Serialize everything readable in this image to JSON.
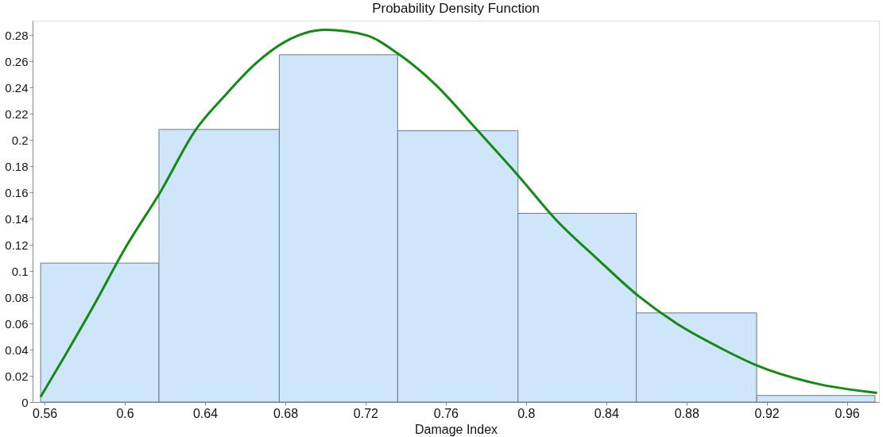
{
  "chart_data": {
    "type": "histogram",
    "title": "Probability Density Function",
    "xlabel": "Damage Index",
    "bins": [
      0.558,
      0.617,
      0.677,
      0.736,
      0.796,
      0.855,
      0.915,
      0.974
    ],
    "values": [
      0.106,
      0.208,
      0.265,
      0.207,
      0.144,
      0.068,
      0.005
    ],
    "color": "#cfe5fa",
    "series": [
      {
        "type": "line",
        "color": "#138a13",
        "x": [
          0.558,
          0.57,
          0.585,
          0.6,
          0.618,
          0.635,
          0.65,
          0.665,
          0.68,
          0.7,
          0.72,
          0.736,
          0.755,
          0.776,
          0.796,
          0.815,
          0.835,
          0.856,
          0.875,
          0.896,
          0.915,
          0.945,
          0.975
        ],
        "values": [
          0.004,
          0.035,
          0.075,
          0.117,
          0.161,
          0.207,
          0.234,
          0.258,
          0.275,
          0.284,
          0.28,
          0.266,
          0.242,
          0.207,
          0.173,
          0.139,
          0.11,
          0.081,
          0.06,
          0.042,
          0.028,
          0.014,
          0.007
        ]
      }
    ],
    "xlim": [
      0.554,
      0.976
    ],
    "ylim": [
      0,
      0.291
    ],
    "xticks": [
      0.56,
      0.6,
      0.64,
      0.68,
      0.72,
      0.76,
      0.8,
      0.84,
      0.88,
      0.92,
      0.96
    ],
    "yticks": [
      0,
      0.02,
      0.04,
      0.06,
      0.08,
      0.1,
      0.12,
      0.14,
      0.16,
      0.18,
      0.2,
      0.22,
      0.24,
      0.26,
      0.28
    ],
    "grid": false,
    "legend": false
  }
}
